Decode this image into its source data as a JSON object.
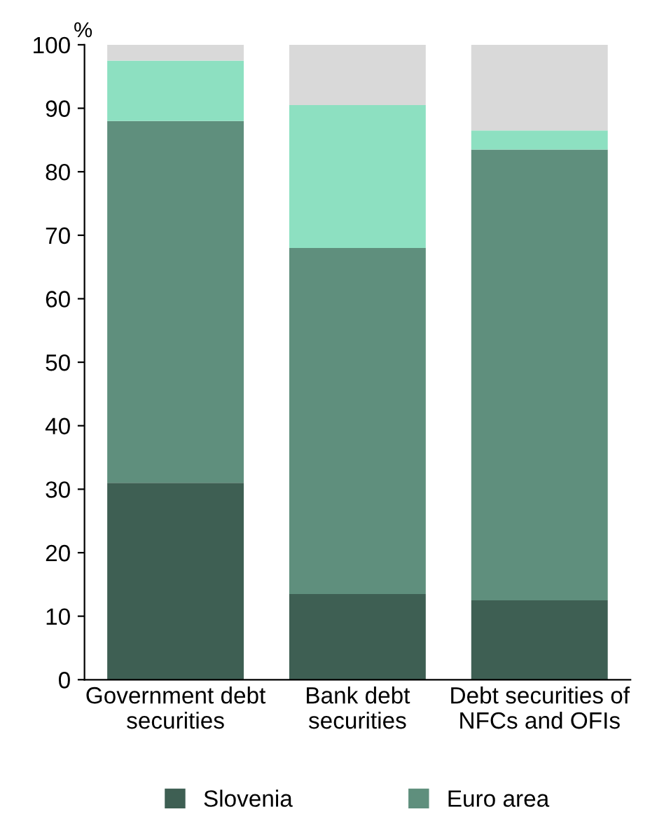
{
  "chart_data": {
    "type": "bar",
    "stacked": true,
    "ylabel": "%",
    "categories": [
      "Government debt\nsecurities",
      "Bank debt\nsecurities",
      "Debt securities of\nNFCs and OFIs"
    ],
    "series": [
      {
        "name": "Slovenia",
        "color": "#3e5f53",
        "values": [
          31,
          13.5,
          12.5
        ]
      },
      {
        "name": "Euro area",
        "color": "#5f8f7d",
        "values": [
          57,
          54.5,
          71
        ]
      },
      {
        "color": "#8de0c1",
        "values": [
          9.5,
          22.5,
          3
        ]
      },
      {
        "color": "#d9d9d9",
        "values": [
          2.5,
          9.5,
          13.5
        ]
      }
    ],
    "ylim": [
      0,
      100
    ],
    "yticks": [
      0,
      10,
      20,
      30,
      40,
      50,
      60,
      70,
      80,
      90,
      100
    ],
    "grid": false,
    "legend": "bottom"
  }
}
